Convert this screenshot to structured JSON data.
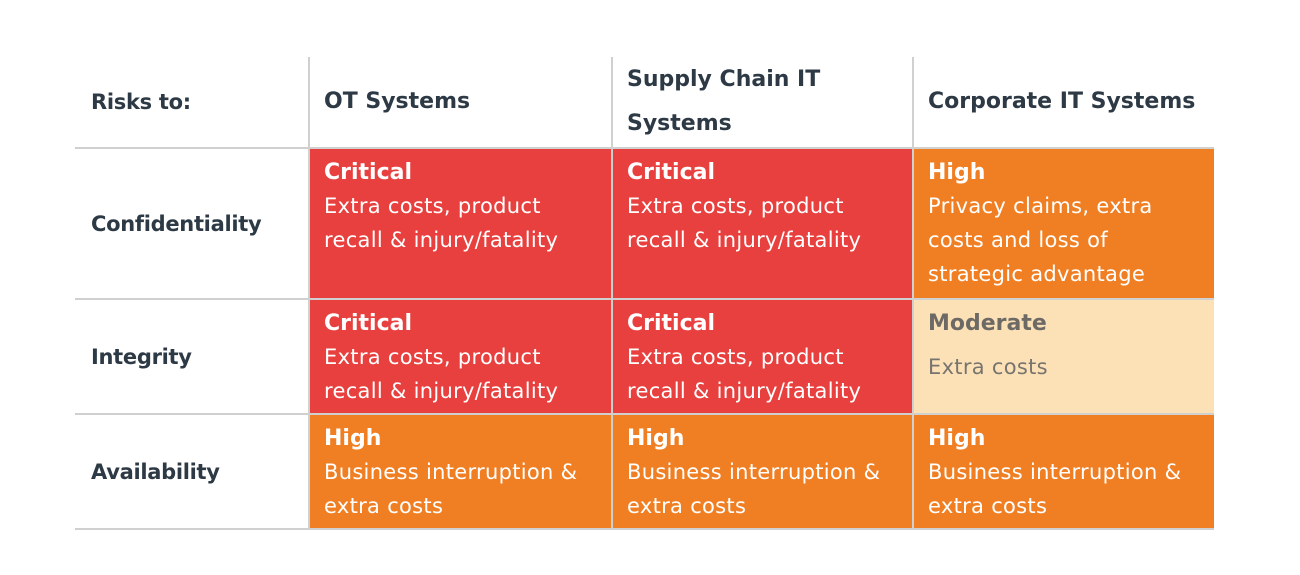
{
  "table": {
    "corner_label": "Risks to:",
    "columns": [
      "OT Systems",
      "Supply Chain IT Systems",
      "Corporate IT Systems"
    ],
    "rows": [
      {
        "label": "Confidentiality",
        "cells": [
          {
            "level": "Critical",
            "description": "Extra costs, product recall & injury/fatality",
            "color": "#e8403e"
          },
          {
            "level": "Critical",
            "description": "Extra costs, product recall & injury/fatality",
            "color": "#e8403e"
          },
          {
            "level": "High",
            "description": "Privacy claims, extra costs and loss of strategic advantage",
            "color": "#f07f23"
          }
        ]
      },
      {
        "label": "Integrity",
        "cells": [
          {
            "level": "Critical",
            "description": "Extra costs, product recall & injury/fatality",
            "color": "#e8403e"
          },
          {
            "level": "Critical",
            "description": "Extra costs, product recall & injury/fatality",
            "color": "#e8403e"
          },
          {
            "level": "Moderate",
            "description": "Extra costs",
            "color": "#fde1b6"
          }
        ]
      },
      {
        "label": "Availability",
        "cells": [
          {
            "level": "High",
            "description": "Business interruption & extra costs",
            "color": "#f07f23"
          },
          {
            "level": "High",
            "description": "Business interruption & extra costs",
            "color": "#f07f23"
          },
          {
            "level": "High",
            "description": "Business interruption & extra costs",
            "color": "#f07f23"
          }
        ]
      }
    ]
  }
}
